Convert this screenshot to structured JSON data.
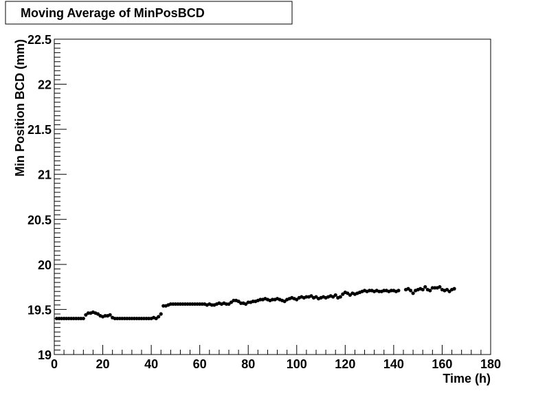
{
  "chart_data": {
    "type": "scatter",
    "title": "Moving Average of MinPosBCD",
    "x_label": "Time (h)",
    "y_label": "Min Position BCD (mm)",
    "xlim": [
      0,
      180
    ],
    "xticks": [
      0,
      20,
      40,
      60,
      80,
      100,
      120,
      140,
      160,
      180
    ],
    "ylim": [
      19,
      22.5
    ],
    "yticks": [
      19,
      19.5,
      20,
      20.5,
      21,
      21.5,
      22,
      22.5
    ],
    "color": "#000000",
    "x": [
      1,
      2,
      3,
      4,
      5,
      6,
      7,
      8,
      9,
      10,
      11,
      12,
      13,
      14,
      15,
      16,
      17,
      18,
      19,
      20,
      21,
      22,
      23,
      24,
      25,
      26,
      27,
      28,
      29,
      30,
      31,
      32,
      33,
      34,
      35,
      36,
      37,
      38,
      39,
      40,
      41,
      42,
      43,
      44,
      45,
      46,
      47,
      48,
      49,
      50,
      51,
      52,
      53,
      54,
      55,
      56,
      57,
      58,
      59,
      60,
      61,
      62,
      63,
      64,
      65,
      66,
      67,
      68,
      69,
      70,
      71,
      72,
      73,
      74,
      75,
      76,
      77,
      78,
      79,
      80,
      81,
      82,
      83,
      84,
      85,
      86,
      87,
      88,
      89,
      90,
      91,
      92,
      93,
      94,
      95,
      96,
      97,
      98,
      99,
      100,
      101,
      102,
      103,
      104,
      105,
      106,
      107,
      108,
      109,
      110,
      111,
      112,
      113,
      114,
      115,
      116,
      117,
      118,
      119,
      120,
      121,
      122,
      123,
      124,
      125,
      126,
      127,
      128,
      129,
      130,
      131,
      132,
      133,
      134,
      135,
      136,
      137,
      138,
      139,
      140,
      141,
      142,
      145,
      146,
      147,
      148,
      149,
      150,
      151,
      152,
      153,
      154,
      155,
      156,
      157,
      158,
      159,
      160,
      161,
      162,
      163,
      164,
      165
    ],
    "values": [
      19.4,
      19.4,
      19.4,
      19.4,
      19.4,
      19.4,
      19.4,
      19.4,
      19.4,
      19.4,
      19.4,
      19.4,
      19.44,
      19.46,
      19.46,
      19.47,
      19.46,
      19.45,
      19.43,
      19.42,
      19.43,
      19.43,
      19.44,
      19.41,
      19.4,
      19.4,
      19.4,
      19.4,
      19.4,
      19.4,
      19.4,
      19.4,
      19.4,
      19.4,
      19.4,
      19.4,
      19.4,
      19.4,
      19.4,
      19.4,
      19.41,
      19.4,
      19.42,
      19.45,
      19.54,
      19.54,
      19.55,
      19.56,
      19.56,
      19.56,
      19.56,
      19.56,
      19.56,
      19.56,
      19.56,
      19.56,
      19.56,
      19.56,
      19.56,
      19.56,
      19.56,
      19.56,
      19.55,
      19.56,
      19.55,
      19.55,
      19.56,
      19.57,
      19.56,
      19.57,
      19.56,
      19.56,
      19.58,
      19.6,
      19.6,
      19.59,
      19.57,
      19.57,
      19.56,
      19.58,
      19.58,
      19.59,
      19.59,
      19.6,
      19.61,
      19.61,
      19.62,
      19.61,
      19.6,
      19.61,
      19.61,
      19.62,
      19.61,
      19.6,
      19.59,
      19.61,
      19.62,
      19.63,
      19.62,
      19.61,
      19.63,
      19.64,
      19.63,
      19.64,
      19.64,
      19.65,
      19.63,
      19.64,
      19.62,
      19.63,
      19.64,
      19.63,
      19.64,
      19.65,
      19.64,
      19.66,
      19.63,
      19.64,
      19.67,
      19.69,
      19.68,
      19.66,
      19.68,
      19.67,
      19.68,
      19.69,
      19.7,
      19.71,
      19.7,
      19.71,
      19.71,
      19.7,
      19.71,
      19.7,
      19.7,
      19.71,
      19.71,
      19.7,
      19.71,
      19.71,
      19.7,
      19.71,
      19.72,
      19.73,
      19.71,
      19.68,
      19.71,
      19.72,
      19.73,
      19.72,
      19.75,
      19.72,
      19.71,
      19.74,
      19.74,
      19.74,
      19.75,
      19.72,
      19.71,
      19.72,
      19.7,
      19.72,
      19.73
    ]
  }
}
